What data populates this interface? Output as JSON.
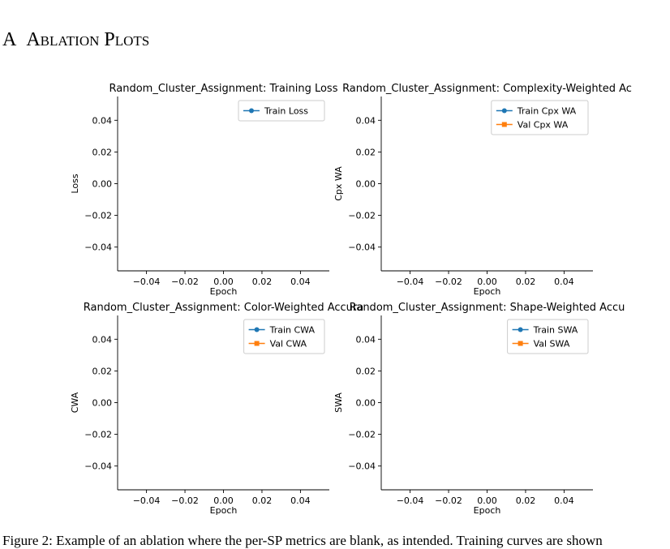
{
  "section": {
    "number": "A",
    "title": "Ablation Plots"
  },
  "caption": "Figure 2: Example of an ablation where the per-SP metrics are blank, as intended. Training curves are shown",
  "chart_data": [
    {
      "type": "line",
      "title": "Random_Cluster_Assignment: Training Loss",
      "xlabel": "Epoch",
      "ylabel": "Loss",
      "xlim": [
        -0.055,
        0.055
      ],
      "ylim": [
        -0.055,
        0.055
      ],
      "xticks": [
        -0.04,
        -0.02,
        0.0,
        0.02,
        0.04
      ],
      "yticks": [
        -0.04,
        -0.02,
        0.0,
        0.02,
        0.04
      ],
      "xtick_labels": [
        "−0.04",
        "−0.02",
        "0.00",
        "0.02",
        "0.04"
      ],
      "ytick_labels": [
        "−0.04",
        "−0.02",
        "0.00",
        "0.02",
        "0.04"
      ],
      "grid": false,
      "legend": "upper-right",
      "series": [
        {
          "name": "Train Loss",
          "x": [],
          "y": [],
          "color": "#1f77b4",
          "marker": "circle"
        }
      ]
    },
    {
      "type": "line",
      "title": "Random_Cluster_Assignment: Complexity-Weighted Ac",
      "xlabel": "Epoch",
      "ylabel": "Cpx WA",
      "xlim": [
        -0.055,
        0.055
      ],
      "ylim": [
        -0.055,
        0.055
      ],
      "xticks": [
        -0.04,
        -0.02,
        0.0,
        0.02,
        0.04
      ],
      "yticks": [
        -0.04,
        -0.02,
        0.0,
        0.02,
        0.04
      ],
      "xtick_labels": [
        "−0.04",
        "−0.02",
        "0.00",
        "0.02",
        "0.04"
      ],
      "ytick_labels": [
        "−0.04",
        "−0.02",
        "0.00",
        "0.02",
        "0.04"
      ],
      "grid": false,
      "legend": "upper-right",
      "series": [
        {
          "name": "Train Cpx WA",
          "x": [],
          "y": [],
          "color": "#1f77b4",
          "marker": "circle"
        },
        {
          "name": "Val Cpx WA",
          "x": [],
          "y": [],
          "color": "#ff7f0e",
          "marker": "square"
        }
      ]
    },
    {
      "type": "line",
      "title": "Random_Cluster_Assignment: Color-Weighted Accura",
      "xlabel": "Epoch",
      "ylabel": "CWA",
      "xlim": [
        -0.055,
        0.055
      ],
      "ylim": [
        -0.055,
        0.055
      ],
      "xticks": [
        -0.04,
        -0.02,
        0.0,
        0.02,
        0.04
      ],
      "yticks": [
        -0.04,
        -0.02,
        0.0,
        0.02,
        0.04
      ],
      "xtick_labels": [
        "−0.04",
        "−0.02",
        "0.00",
        "0.02",
        "0.04"
      ],
      "ytick_labels": [
        "−0.04",
        "−0.02",
        "0.00",
        "0.02",
        "0.04"
      ],
      "grid": false,
      "legend": "upper-right",
      "series": [
        {
          "name": "Train CWA",
          "x": [],
          "y": [],
          "color": "#1f77b4",
          "marker": "circle"
        },
        {
          "name": "Val CWA",
          "x": [],
          "y": [],
          "color": "#ff7f0e",
          "marker": "square"
        }
      ]
    },
    {
      "type": "line",
      "title": "Random_Cluster_Assignment: Shape-Weighted Accu",
      "xlabel": "Epoch",
      "ylabel": "SWA",
      "xlim": [
        -0.055,
        0.055
      ],
      "ylim": [
        -0.055,
        0.055
      ],
      "xticks": [
        -0.04,
        -0.02,
        0.0,
        0.02,
        0.04
      ],
      "yticks": [
        -0.04,
        -0.02,
        0.0,
        0.02,
        0.04
      ],
      "xtick_labels": [
        "−0.04",
        "−0.02",
        "0.00",
        "0.02",
        "0.04"
      ],
      "ytick_labels": [
        "−0.04",
        "−0.02",
        "0.00",
        "0.02",
        "0.04"
      ],
      "grid": false,
      "legend": "upper-right",
      "series": [
        {
          "name": "Train SWA",
          "x": [],
          "y": [],
          "color": "#1f77b4",
          "marker": "circle"
        },
        {
          "name": "Val SWA",
          "x": [],
          "y": [],
          "color": "#ff7f0e",
          "marker": "square"
        }
      ]
    }
  ]
}
